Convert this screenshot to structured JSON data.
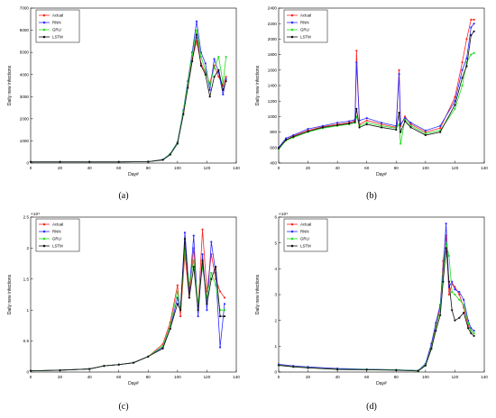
{
  "captions": [
    "(a)",
    "(b)",
    "(c)",
    "(d)"
  ],
  "legend_labels": [
    "Actual",
    "RNN",
    "GRU",
    "LSTM"
  ],
  "colors": {
    "Actual": "#ff2222",
    "RNN": "#2b2bff",
    "GRU": "#22dd22",
    "LSTM": "#111111"
  },
  "chart_data": [
    {
      "type": "line",
      "xlabel": "Day#",
      "ylabel": "Daily new infections",
      "xlim": [
        0,
        140
      ],
      "ylim": [
        0,
        7000
      ],
      "xticks": [
        "0",
        "20",
        "40",
        "60",
        "80",
        "100",
        "120",
        "140"
      ],
      "yticks": [
        "0",
        "1000",
        "2000",
        "3000",
        "4000",
        "5000",
        "6000",
        "7000"
      ],
      "exponent": "",
      "series": [
        {
          "name": "Actual",
          "x": [
            0,
            20,
            40,
            60,
            80,
            90,
            95,
            100,
            104,
            107,
            110,
            113,
            116,
            119,
            122,
            125,
            128,
            131,
            133
          ],
          "y": [
            50,
            50,
            50,
            50,
            60,
            150,
            400,
            900,
            2300,
            3500,
            4700,
            5500,
            4500,
            4100,
            3600,
            4400,
            3900,
            3500,
            3900
          ]
        },
        {
          "name": "RNN",
          "x": [
            0,
            20,
            40,
            60,
            80,
            90,
            95,
            100,
            104,
            107,
            110,
            113,
            116,
            119,
            122,
            125,
            128,
            131,
            133
          ],
          "y": [
            50,
            50,
            50,
            50,
            60,
            160,
            420,
            950,
            2400,
            3700,
            5000,
            6400,
            5000,
            4500,
            3300,
            4700,
            4100,
            3100,
            3800
          ]
        },
        {
          "name": "GRU",
          "x": [
            0,
            20,
            40,
            60,
            80,
            90,
            95,
            100,
            104,
            107,
            110,
            113,
            116,
            119,
            122,
            125,
            128,
            131,
            133
          ],
          "y": [
            50,
            50,
            50,
            50,
            60,
            150,
            410,
            920,
            2350,
            3600,
            4900,
            6000,
            4800,
            4200,
            3500,
            4300,
            4800,
            3600,
            4800
          ]
        },
        {
          "name": "LSTM",
          "x": [
            0,
            20,
            40,
            60,
            80,
            90,
            95,
            100,
            104,
            107,
            110,
            113,
            116,
            119,
            122,
            125,
            128,
            131,
            133
          ],
          "y": [
            50,
            50,
            50,
            50,
            60,
            140,
            380,
            880,
            2200,
            3400,
            4600,
            5800,
            4400,
            4000,
            3000,
            3900,
            4200,
            3300,
            3700
          ]
        }
      ]
    },
    {
      "type": "line",
      "xlabel": "Day#",
      "ylabel": "Daily new infections",
      "xlim": [
        0,
        140
      ],
      "ylim": [
        400,
        2400
      ],
      "xticks": [
        "0",
        "20",
        "40",
        "60",
        "80",
        "100",
        "120",
        "140"
      ],
      "yticks": [
        "400",
        "600",
        "800",
        "1000",
        "1200",
        "1400",
        "1600",
        "1800",
        "2000",
        "2200",
        "2400"
      ],
      "exponent": "",
      "series": [
        {
          "name": "Actual",
          "x": [
            0,
            5,
            10,
            20,
            30,
            40,
            48,
            52,
            53,
            55,
            60,
            70,
            80,
            82,
            83,
            86,
            90,
            100,
            110,
            120,
            125,
            128,
            131,
            133
          ],
          "y": [
            600,
            700,
            750,
            820,
            870,
            900,
            920,
            950,
            1850,
            900,
            950,
            900,
            860,
            1600,
            880,
            1000,
            900,
            800,
            850,
            1250,
            1700,
            2000,
            2250,
            2250
          ]
        },
        {
          "name": "RNN",
          "x": [
            0,
            5,
            10,
            20,
            30,
            40,
            48,
            52,
            53,
            55,
            60,
            70,
            80,
            82,
            83,
            86,
            90,
            100,
            110,
            120,
            125,
            128,
            131,
            133
          ],
          "y": [
            600,
            720,
            760,
            840,
            880,
            920,
            940,
            960,
            1700,
            950,
            980,
            920,
            880,
            1550,
            900,
            980,
            920,
            820,
            880,
            1200,
            1600,
            1750,
            2150,
            2200
          ]
        },
        {
          "name": "GRU",
          "x": [
            0,
            5,
            10,
            20,
            30,
            40,
            48,
            52,
            53,
            55,
            60,
            70,
            80,
            82,
            83,
            86,
            90,
            100,
            110,
            120,
            125,
            128,
            131,
            133
          ],
          "y": [
            580,
            690,
            730,
            800,
            850,
            880,
            900,
            920,
            1000,
            880,
            920,
            880,
            850,
            900,
            650,
            960,
            880,
            780,
            820,
            1100,
            1400,
            1700,
            1800,
            1820
          ]
        },
        {
          "name": "LSTM",
          "x": [
            0,
            5,
            10,
            20,
            30,
            40,
            48,
            52,
            53,
            55,
            60,
            70,
            80,
            82,
            83,
            86,
            90,
            100,
            110,
            120,
            125,
            128,
            131,
            133
          ],
          "y": [
            590,
            700,
            740,
            810,
            860,
            890,
            910,
            930,
            1100,
            860,
            900,
            860,
            830,
            1050,
            800,
            940,
            860,
            760,
            800,
            1150,
            1500,
            1650,
            2050,
            2100
          ]
        }
      ]
    },
    {
      "type": "line",
      "xlabel": "Day#",
      "ylabel": "Daily new infections",
      "xlim": [
        0,
        140
      ],
      "ylim": [
        0,
        2.5
      ],
      "xticks": [
        "0",
        "20",
        "40",
        "60",
        "80",
        "100",
        "120",
        "140"
      ],
      "yticks": [
        "0",
        "0.5",
        "1",
        "1.5",
        "2",
        "2.5"
      ],
      "exponent": "×10⁴",
      "series": [
        {
          "name": "Actual",
          "x": [
            0,
            20,
            40,
            50,
            60,
            70,
            80,
            90,
            95,
            100,
            102,
            105,
            108,
            111,
            114,
            117,
            120,
            123,
            126,
            129,
            132
          ],
          "y": [
            0.02,
            0.03,
            0.05,
            0.1,
            0.12,
            0.15,
            0.25,
            0.45,
            0.8,
            1.4,
            0.9,
            1.9,
            1.2,
            2.0,
            1.0,
            2.3,
            1.3,
            1.9,
            1.5,
            1.3,
            1.2
          ]
        },
        {
          "name": "RNN",
          "x": [
            0,
            20,
            40,
            50,
            60,
            70,
            80,
            90,
            95,
            100,
            102,
            105,
            108,
            111,
            114,
            117,
            120,
            123,
            126,
            129,
            132
          ],
          "y": [
            0.02,
            0.03,
            0.05,
            0.1,
            0.12,
            0.15,
            0.25,
            0.4,
            0.7,
            1.2,
            1.0,
            2.25,
            1.3,
            2.2,
            0.9,
            1.9,
            1.0,
            2.1,
            1.6,
            0.4,
            1.1
          ]
        },
        {
          "name": "GRU",
          "x": [
            0,
            20,
            40,
            50,
            60,
            70,
            80,
            90,
            95,
            100,
            102,
            105,
            108,
            111,
            114,
            117,
            120,
            123,
            126,
            129,
            132
          ],
          "y": [
            0.02,
            0.03,
            0.05,
            0.1,
            0.12,
            0.15,
            0.25,
            0.42,
            0.75,
            1.3,
            1.0,
            2.0,
            1.4,
            1.8,
            1.1,
            1.7,
            1.2,
            1.6,
            1.4,
            1.0,
            1.0
          ]
        },
        {
          "name": "LSTM",
          "x": [
            0,
            20,
            40,
            50,
            60,
            70,
            80,
            90,
            95,
            100,
            102,
            105,
            108,
            111,
            114,
            117,
            120,
            123,
            126,
            129,
            132
          ],
          "y": [
            0.02,
            0.03,
            0.05,
            0.1,
            0.12,
            0.15,
            0.25,
            0.38,
            0.7,
            1.1,
            1.0,
            2.15,
            1.2,
            1.7,
            1.0,
            1.8,
            1.1,
            1.5,
            1.7,
            0.9,
            0.9
          ]
        }
      ]
    },
    {
      "type": "line",
      "xlabel": "Day#",
      "ylabel": "Daily new infections",
      "xlim": [
        0,
        140
      ],
      "ylim": [
        0,
        6
      ],
      "xticks": [
        "0",
        "20",
        "40",
        "60",
        "80",
        "100",
        "120",
        "140"
      ],
      "yticks": [
        "0",
        "1",
        "2",
        "3",
        "4",
        "5",
        "6"
      ],
      "exponent": "×10⁴",
      "series": [
        {
          "name": "Actual",
          "x": [
            0,
            10,
            20,
            40,
            60,
            80,
            95,
            100,
            104,
            107,
            110,
            112,
            114,
            116,
            118,
            120,
            123,
            126,
            129,
            131,
            133
          ],
          "y": [
            0.28,
            0.22,
            0.18,
            0.12,
            0.1,
            0.08,
            0.05,
            0.3,
            1.0,
            1.8,
            2.5,
            4.3,
            5.3,
            3.0,
            3.4,
            3.3,
            3.0,
            2.5,
            1.8,
            1.6,
            1.5
          ]
        },
        {
          "name": "RNN",
          "x": [
            0,
            10,
            20,
            40,
            60,
            80,
            95,
            100,
            104,
            107,
            110,
            112,
            114,
            116,
            118,
            120,
            123,
            126,
            129,
            131,
            133
          ],
          "y": [
            0.3,
            0.24,
            0.2,
            0.14,
            0.11,
            0.09,
            0.06,
            0.32,
            1.1,
            1.9,
            2.6,
            4.0,
            5.75,
            3.3,
            3.5,
            3.2,
            3.1,
            2.8,
            2.0,
            1.7,
            1.6
          ]
        },
        {
          "name": "GRU",
          "x": [
            0,
            10,
            20,
            40,
            60,
            80,
            95,
            100,
            104,
            107,
            110,
            112,
            114,
            116,
            118,
            120,
            123,
            126,
            129,
            131,
            133
          ],
          "y": [
            0.27,
            0.21,
            0.17,
            0.11,
            0.1,
            0.08,
            0.05,
            0.28,
            0.95,
            1.7,
            2.4,
            3.8,
            5.0,
            4.5,
            3.1,
            3.0,
            2.8,
            2.6,
            1.9,
            1.6,
            1.5
          ]
        },
        {
          "name": "LSTM",
          "x": [
            0,
            10,
            20,
            40,
            60,
            80,
            95,
            100,
            104,
            107,
            110,
            112,
            114,
            116,
            118,
            120,
            123,
            126,
            129,
            131,
            133
          ],
          "y": [
            0.26,
            0.2,
            0.16,
            0.1,
            0.09,
            0.07,
            0.04,
            0.25,
            0.9,
            1.6,
            2.2,
            3.5,
            4.8,
            3.5,
            2.4,
            2.0,
            2.1,
            2.3,
            1.7,
            1.5,
            1.4
          ]
        }
      ]
    }
  ]
}
